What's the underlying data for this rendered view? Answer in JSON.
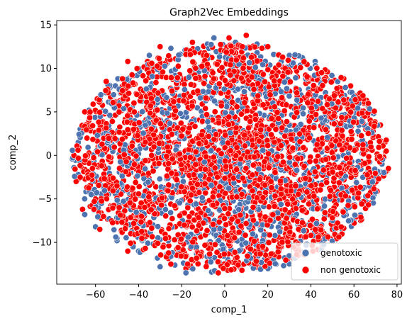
{
  "chart_data": {
    "type": "scatter",
    "title": "Graph2Vec Embeddings",
    "xlabel": "comp_1",
    "ylabel": "comp_2",
    "xlim": [
      -78,
      82
    ],
    "ylim": [
      -14.8,
      15.5
    ],
    "xticks": [
      -60,
      -40,
      -20,
      0,
      20,
      40,
      60,
      80
    ],
    "yticks": [
      -10,
      -5,
      0,
      5,
      10,
      15
    ],
    "grid": false,
    "legend_position": "bottom-right",
    "series": [
      {
        "name": "genotoxic",
        "color": "#4c72b0",
        "cloud": {
          "cx": 2,
          "cy": -0.3,
          "rx": 73,
          "ry": 13.2,
          "count": 1300
        },
        "points": [
          [
            -18,
            -13.5
          ],
          [
            -30,
            -12.8
          ],
          [
            -2,
            -12.5
          ],
          [
            12,
            -11.8
          ],
          [
            -40,
            -11.0
          ],
          [
            -50,
            -9.8
          ],
          [
            -60,
            -8.2
          ],
          [
            -65,
            -6.8
          ],
          [
            -68,
            -2.2
          ],
          [
            -68,
            1.5
          ],
          [
            -63,
            5.2
          ],
          [
            -55,
            7.2
          ],
          [
            -40,
            10.0
          ],
          [
            -25,
            12.3
          ],
          [
            -5,
            13.5
          ],
          [
            15,
            12.8
          ],
          [
            30,
            11.5
          ],
          [
            42,
            10.8
          ],
          [
            55,
            6.5
          ],
          [
            65,
            3.5
          ],
          [
            73,
            -1.0
          ],
          [
            70,
            -4.2
          ],
          [
            60,
            -7.5
          ],
          [
            45,
            -8.0
          ],
          [
            35,
            -11.0
          ],
          [
            -8,
            12.8
          ],
          [
            5,
            13.0
          ],
          [
            -35,
            11.5
          ],
          [
            -62,
            -4.5
          ],
          [
            38,
            -10.2
          ]
        ]
      },
      {
        "name": "non genotoxic",
        "color": "#ff0000",
        "cloud": {
          "cx": 3,
          "cy": -0.2,
          "rx": 73,
          "ry": 13.0,
          "count": 2400
        },
        "points": [
          [
            10,
            13.8
          ],
          [
            2,
            13.5
          ],
          [
            -15,
            13.0
          ],
          [
            -30,
            12.5
          ],
          [
            20,
            12.5
          ],
          [
            -45,
            10.8
          ],
          [
            -55,
            8.5
          ],
          [
            -65,
            5.0
          ],
          [
            -70,
            0.0
          ],
          [
            -69,
            -3.0
          ],
          [
            -66,
            -6.2
          ],
          [
            -58,
            -8.5
          ],
          [
            -45,
            -11.0
          ],
          [
            -25,
            -12.5
          ],
          [
            -3,
            -13.5
          ],
          [
            8,
            -13.2
          ],
          [
            25,
            -10.5
          ],
          [
            40,
            -9.2
          ],
          [
            55,
            -6.5
          ],
          [
            68,
            -3.8
          ],
          [
            76,
            -1.5
          ],
          [
            75,
            0.5
          ],
          [
            70,
            3.5
          ],
          [
            60,
            5.5
          ],
          [
            45,
            9.5
          ],
          [
            30,
            10.8
          ],
          [
            -18,
            -13.0
          ],
          [
            0,
            -12.8
          ],
          [
            50,
            -8.5
          ],
          [
            65,
            4.5
          ]
        ]
      }
    ]
  }
}
